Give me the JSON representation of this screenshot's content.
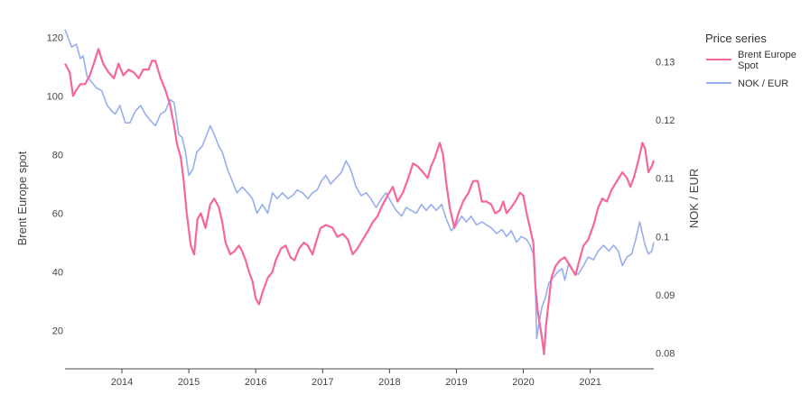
{
  "chart_data": {
    "type": "line",
    "x_ticks": [
      "2014",
      "2015",
      "2016",
      "2017",
      "2018",
      "2019",
      "2020",
      "2021"
    ],
    "xlim": [
      2013.15,
      2021.95
    ],
    "y_left": {
      "label": "Brent Europe spot",
      "ticks": [
        "20",
        "40",
        "60",
        "80",
        "100",
        "120"
      ],
      "range": [
        7,
        121
      ]
    },
    "y_right": {
      "label": "NOK / EUR",
      "ticks": [
        "0.08",
        "0.09",
        "0.1",
        "0.11",
        "0.12",
        "0.13"
      ],
      "range": [
        0.0773,
        0.1347
      ]
    },
    "legend": {
      "title": "Price series",
      "placement": "top-right"
    },
    "series": [
      {
        "name": "Brent Europe Spot",
        "axis": "left",
        "color": "#f7669a",
        "points": [
          [
            2013.15,
            111
          ],
          [
            2013.22,
            108
          ],
          [
            2013.27,
            100
          ],
          [
            2013.32,
            102
          ],
          [
            2013.38,
            104
          ],
          [
            2013.45,
            104
          ],
          [
            2013.52,
            107
          ],
          [
            2013.58,
            111
          ],
          [
            2013.65,
            116
          ],
          [
            2013.72,
            111
          ],
          [
            2013.8,
            108
          ],
          [
            2013.88,
            106
          ],
          [
            2013.95,
            111
          ],
          [
            2014.02,
            107
          ],
          [
            2014.1,
            109
          ],
          [
            2014.18,
            108
          ],
          [
            2014.25,
            106
          ],
          [
            2014.32,
            109
          ],
          [
            2014.4,
            109
          ],
          [
            2014.45,
            112
          ],
          [
            2014.5,
            112
          ],
          [
            2014.58,
            106
          ],
          [
            2014.65,
            102
          ],
          [
            2014.72,
            97
          ],
          [
            2014.78,
            90
          ],
          [
            2014.82,
            84
          ],
          [
            2014.88,
            79
          ],
          [
            2014.92,
            72
          ],
          [
            2014.97,
            60
          ],
          [
            2015.03,
            49
          ],
          [
            2015.08,
            46
          ],
          [
            2015.13,
            58
          ],
          [
            2015.18,
            60
          ],
          [
            2015.25,
            55
          ],
          [
            2015.32,
            63
          ],
          [
            2015.38,
            65
          ],
          [
            2015.45,
            62
          ],
          [
            2015.5,
            57
          ],
          [
            2015.55,
            50
          ],
          [
            2015.62,
            46
          ],
          [
            2015.68,
            47
          ],
          [
            2015.75,
            49
          ],
          [
            2015.8,
            47
          ],
          [
            2015.85,
            44
          ],
          [
            2015.9,
            40
          ],
          [
            2015.95,
            37
          ],
          [
            2016.0,
            31
          ],
          [
            2016.05,
            29
          ],
          [
            2016.1,
            33
          ],
          [
            2016.18,
            38
          ],
          [
            2016.25,
            40
          ],
          [
            2016.3,
            44
          ],
          [
            2016.38,
            48
          ],
          [
            2016.45,
            49
          ],
          [
            2016.52,
            45
          ],
          [
            2016.58,
            44
          ],
          [
            2016.65,
            48
          ],
          [
            2016.72,
            50
          ],
          [
            2016.78,
            49
          ],
          [
            2016.85,
            46
          ],
          [
            2016.9,
            50
          ],
          [
            2016.97,
            55
          ],
          [
            2017.05,
            56
          ],
          [
            2017.15,
            55
          ],
          [
            2017.22,
            52
          ],
          [
            2017.3,
            53
          ],
          [
            2017.38,
            51
          ],
          [
            2017.45,
            46
          ],
          [
            2017.52,
            48
          ],
          [
            2017.6,
            51
          ],
          [
            2017.68,
            54
          ],
          [
            2017.75,
            57
          ],
          [
            2017.82,
            59
          ],
          [
            2017.9,
            63
          ],
          [
            2017.97,
            66
          ],
          [
            2018.05,
            69
          ],
          [
            2018.12,
            64
          ],
          [
            2018.2,
            67
          ],
          [
            2018.28,
            72
          ],
          [
            2018.35,
            77
          ],
          [
            2018.42,
            76
          ],
          [
            2018.5,
            74
          ],
          [
            2018.57,
            72
          ],
          [
            2018.62,
            76
          ],
          [
            2018.68,
            79
          ],
          [
            2018.75,
            84
          ],
          [
            2018.8,
            80
          ],
          [
            2018.85,
            70
          ],
          [
            2018.9,
            62
          ],
          [
            2018.97,
            55
          ],
          [
            2019.03,
            60
          ],
          [
            2019.1,
            64
          ],
          [
            2019.18,
            67
          ],
          [
            2019.25,
            71
          ],
          [
            2019.32,
            71
          ],
          [
            2019.38,
            64
          ],
          [
            2019.45,
            64
          ],
          [
            2019.52,
            63
          ],
          [
            2019.58,
            60
          ],
          [
            2019.65,
            61
          ],
          [
            2019.7,
            64
          ],
          [
            2019.75,
            60
          ],
          [
            2019.82,
            62
          ],
          [
            2019.88,
            64
          ],
          [
            2019.95,
            67
          ],
          [
            2020.0,
            66
          ],
          [
            2020.05,
            60
          ],
          [
            2020.1,
            55
          ],
          [
            2020.15,
            50
          ],
          [
            2020.18,
            35
          ],
          [
            2020.22,
            26
          ],
          [
            2020.27,
            19
          ],
          [
            2020.31,
            12
          ],
          [
            2020.34,
            22
          ],
          [
            2020.38,
            30
          ],
          [
            2020.42,
            38
          ],
          [
            2020.48,
            42
          ],
          [
            2020.55,
            44
          ],
          [
            2020.62,
            45
          ],
          [
            2020.7,
            42
          ],
          [
            2020.78,
            39
          ],
          [
            2020.85,
            45
          ],
          [
            2020.9,
            49
          ],
          [
            2020.97,
            51
          ],
          [
            2021.05,
            56
          ],
          [
            2021.12,
            62
          ],
          [
            2021.18,
            65
          ],
          [
            2021.25,
            64
          ],
          [
            2021.32,
            68
          ],
          [
            2021.4,
            71
          ],
          [
            2021.48,
            74
          ],
          [
            2021.55,
            72
          ],
          [
            2021.6,
            69
          ],
          [
            2021.65,
            72
          ],
          [
            2021.72,
            78
          ],
          [
            2021.78,
            84
          ],
          [
            2021.82,
            82
          ],
          [
            2021.87,
            74
          ],
          [
            2021.92,
            76
          ],
          [
            2021.95,
            78
          ]
        ]
      },
      {
        "name": "NOK / EUR",
        "axis": "right",
        "color": "#97aef0",
        "points": [
          [
            2013.15,
            0.1355
          ],
          [
            2013.2,
            0.134
          ],
          [
            2013.25,
            0.1325
          ],
          [
            2013.32,
            0.133
          ],
          [
            2013.38,
            0.1305
          ],
          [
            2013.42,
            0.131
          ],
          [
            2013.48,
            0.1275
          ],
          [
            2013.55,
            0.1265
          ],
          [
            2013.62,
            0.1255
          ],
          [
            2013.7,
            0.125
          ],
          [
            2013.78,
            0.1225
          ],
          [
            2013.85,
            0.1215
          ],
          [
            2013.9,
            0.121
          ],
          [
            2013.97,
            0.1225
          ],
          [
            2014.05,
            0.1195
          ],
          [
            2014.12,
            0.1195
          ],
          [
            2014.2,
            0.1215
          ],
          [
            2014.28,
            0.1225
          ],
          [
            2014.35,
            0.121
          ],
          [
            2014.42,
            0.12
          ],
          [
            2014.5,
            0.119
          ],
          [
            2014.58,
            0.121
          ],
          [
            2014.65,
            0.1215
          ],
          [
            2014.72,
            0.1235
          ],
          [
            2014.78,
            0.123
          ],
          [
            2014.85,
            0.1175
          ],
          [
            2014.9,
            0.117
          ],
          [
            2014.95,
            0.1145
          ],
          [
            2015.0,
            0.1105
          ],
          [
            2015.06,
            0.1115
          ],
          [
            2015.12,
            0.1145
          ],
          [
            2015.2,
            0.1155
          ],
          [
            2015.27,
            0.1175
          ],
          [
            2015.32,
            0.119
          ],
          [
            2015.38,
            0.1175
          ],
          [
            2015.45,
            0.1155
          ],
          [
            2015.5,
            0.1145
          ],
          [
            2015.58,
            0.1115
          ],
          [
            2015.65,
            0.1095
          ],
          [
            2015.72,
            0.1075
          ],
          [
            2015.8,
            0.1085
          ],
          [
            2015.88,
            0.1075
          ],
          [
            2015.95,
            0.1065
          ],
          [
            2016.02,
            0.104
          ],
          [
            2016.1,
            0.1055
          ],
          [
            2016.18,
            0.104
          ],
          [
            2016.25,
            0.1075
          ],
          [
            2016.32,
            0.1065
          ],
          [
            2016.4,
            0.1075
          ],
          [
            2016.48,
            0.1065
          ],
          [
            2016.55,
            0.107
          ],
          [
            2016.62,
            0.108
          ],
          [
            2016.7,
            0.1075
          ],
          [
            2016.78,
            0.1065
          ],
          [
            2016.85,
            0.1075
          ],
          [
            2016.92,
            0.108
          ],
          [
            2016.98,
            0.1095
          ],
          [
            2017.05,
            0.1105
          ],
          [
            2017.12,
            0.109
          ],
          [
            2017.2,
            0.11
          ],
          [
            2017.28,
            0.111
          ],
          [
            2017.35,
            0.113
          ],
          [
            2017.42,
            0.1115
          ],
          [
            2017.5,
            0.1085
          ],
          [
            2017.58,
            0.107
          ],
          [
            2017.65,
            0.1075
          ],
          [
            2017.72,
            0.1065
          ],
          [
            2017.8,
            0.105
          ],
          [
            2017.88,
            0.1065
          ],
          [
            2017.95,
            0.1075
          ],
          [
            2018.02,
            0.106
          ],
          [
            2018.1,
            0.1045
          ],
          [
            2018.18,
            0.1035
          ],
          [
            2018.25,
            0.105
          ],
          [
            2018.32,
            0.1045
          ],
          [
            2018.4,
            0.104
          ],
          [
            2018.48,
            0.1055
          ],
          [
            2018.55,
            0.1045
          ],
          [
            2018.62,
            0.1055
          ],
          [
            2018.7,
            0.1045
          ],
          [
            2018.78,
            0.1055
          ],
          [
            2018.85,
            0.103
          ],
          [
            2018.92,
            0.101
          ],
          [
            2019.0,
            0.102
          ],
          [
            2019.08,
            0.1035
          ],
          [
            2019.15,
            0.1025
          ],
          [
            2019.22,
            0.1035
          ],
          [
            2019.3,
            0.102
          ],
          [
            2019.38,
            0.1025
          ],
          [
            2019.45,
            0.102
          ],
          [
            2019.52,
            0.1015
          ],
          [
            2019.6,
            0.1005
          ],
          [
            2019.68,
            0.1012
          ],
          [
            2019.75,
            0.1
          ],
          [
            2019.82,
            0.101
          ],
          [
            2019.9,
            0.099
          ],
          [
            2019.97,
            0.1
          ],
          [
            2020.05,
            0.0995
          ],
          [
            2020.1,
            0.0985
          ],
          [
            2020.15,
            0.097
          ],
          [
            2020.18,
            0.0915
          ],
          [
            2020.2,
            0.0825
          ],
          [
            2020.24,
            0.0855
          ],
          [
            2020.28,
            0.088
          ],
          [
            2020.33,
            0.0895
          ],
          [
            2020.38,
            0.092
          ],
          [
            2020.45,
            0.093
          ],
          [
            2020.52,
            0.094
          ],
          [
            2020.58,
            0.0945
          ],
          [
            2020.62,
            0.0925
          ],
          [
            2020.68,
            0.0955
          ],
          [
            2020.75,
            0.094
          ],
          [
            2020.82,
            0.0935
          ],
          [
            2020.9,
            0.095
          ],
          [
            2020.97,
            0.0965
          ],
          [
            2021.05,
            0.096
          ],
          [
            2021.12,
            0.0975
          ],
          [
            2021.2,
            0.0985
          ],
          [
            2021.28,
            0.0975
          ],
          [
            2021.35,
            0.0985
          ],
          [
            2021.42,
            0.0975
          ],
          [
            2021.48,
            0.095
          ],
          [
            2021.55,
            0.0965
          ],
          [
            2021.62,
            0.097
          ],
          [
            2021.68,
            0.0995
          ],
          [
            2021.74,
            0.1025
          ],
          [
            2021.78,
            0.1005
          ],
          [
            2021.82,
            0.0985
          ],
          [
            2021.87,
            0.097
          ],
          [
            2021.92,
            0.0975
          ],
          [
            2021.95,
            0.099
          ]
        ]
      }
    ]
  }
}
